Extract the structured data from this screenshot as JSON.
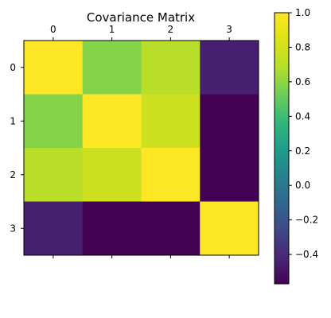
{
  "chart_data": {
    "type": "heatmap",
    "title": "Covariance Matrix",
    "x_tick_labels": [
      "0",
      "1",
      "2",
      "3"
    ],
    "y_tick_labels": [
      "0",
      "1",
      "2",
      "3"
    ],
    "matrix": [
      [
        1.0,
        0.58,
        0.7,
        -0.45
      ],
      [
        0.58,
        1.0,
        0.78,
        -0.57
      ],
      [
        0.7,
        0.78,
        1.0,
        -0.57
      ],
      [
        -0.45,
        -0.57,
        -0.57,
        1.0
      ]
    ],
    "colormap": "viridis",
    "value_range": [
      -0.57,
      1.0
    ],
    "colorbar": {
      "ticks": [
        1.0,
        0.8,
        0.6,
        0.4,
        0.2,
        0.0,
        -0.2,
        -0.4
      ],
      "tick_labels": [
        "1.0",
        "0.8",
        "0.6",
        "0.4",
        "0.2",
        "0.0",
        "−0.2",
        "−0.4"
      ]
    },
    "grid": false,
    "x_tick_position": "top"
  }
}
